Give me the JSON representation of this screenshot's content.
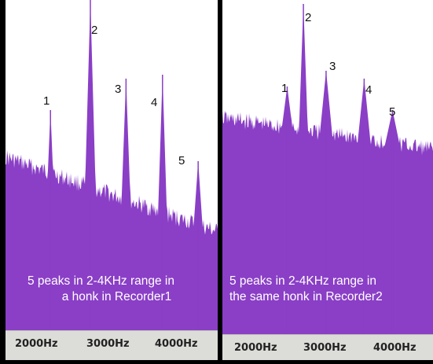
{
  "chart_data": [
    {
      "type": "area",
      "color": "#8a3fc6",
      "x_ticks": [
        "2000Hz",
        "3000Hz",
        "4000Hz"
      ],
      "peaks": [
        {
          "label": "1",
          "x": 2130
        },
        {
          "label": "2",
          "x": 2600
        },
        {
          "label": "3",
          "x": 3020
        },
        {
          "label": "4",
          "x": 3450
        },
        {
          "label": "5",
          "x": 3870
        }
      ],
      "caption": [
        "5 peaks in 2-4KHz range in",
        "a honk in Recorder1"
      ]
    },
    {
      "type": "area",
      "color": "#8a3fc6",
      "x_ticks": [
        "2000Hz",
        "3000Hz",
        "4000Hz"
      ],
      "peaks": [
        {
          "label": "1",
          "x": 2500
        },
        {
          "label": "2",
          "x": 2700
        },
        {
          "label": "3",
          "x": 2980
        },
        {
          "label": "4",
          "x": 3450
        },
        {
          "label": "5",
          "x": 3800
        }
      ],
      "caption": [
        "5 peaks in 2-4KHz range in",
        "the same  honk in Recorder2"
      ]
    }
  ]
}
